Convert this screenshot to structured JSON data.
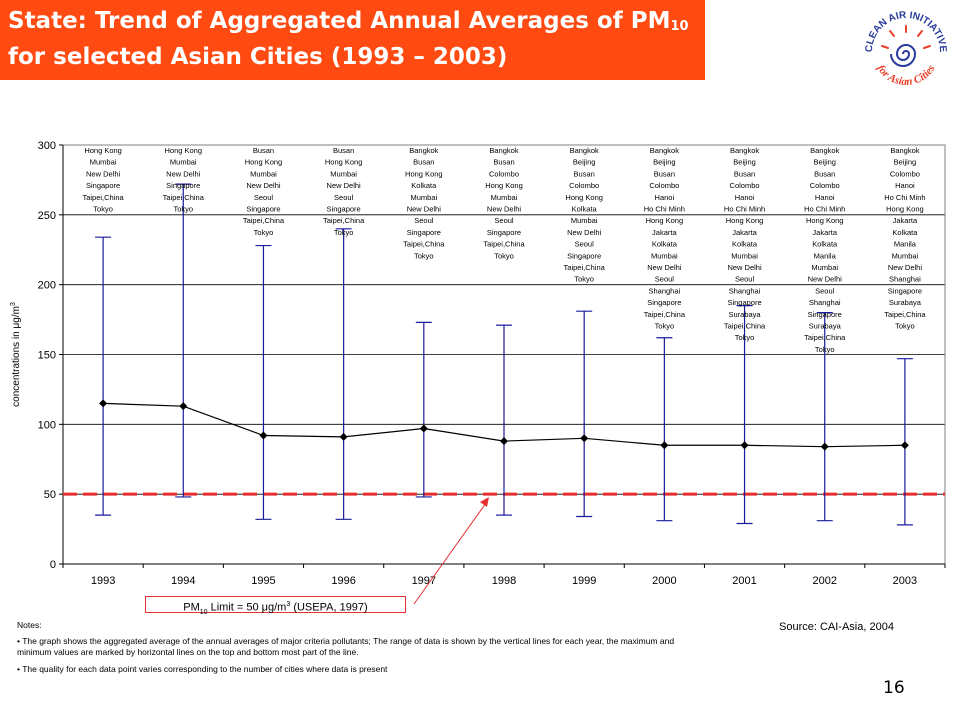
{
  "slide": {
    "title_line1": "State: Trend of Aggregated Annual Averages of PM",
    "title_subscript": "10",
    "title_line2": "for selected Asian Cities (1993 – 2003)",
    "logo_text_top": "CLEAN AIR INITIATIVE",
    "logo_text_bottom": "for Asian Cities",
    "page_number": "16",
    "source": "Source: CAI-Asia, 2004",
    "limit_label_prefix": "PM",
    "limit_label_sub": "10",
    "limit_label_mid": " Limit = 50 μg/m",
    "limit_label_sup": "3",
    "limit_label_suffix": " (USEPA, 1997)",
    "notes_heading": "Notes:",
    "notes": [
      "The graph shows the aggregated average of the annual averages of major criteria pollutants; The range of data is shown by the vertical lines for each year, the maximum and minimum values are marked by horizontal lines on the top and bottom most part of the line.",
      "The quality for each data point varies corresponding to the number of cities where data is present"
    ],
    "colors": {
      "title_bar": "#ff4a12",
      "range_lines": "#1a1a9c",
      "limit_line": "#e53030",
      "average_line": "#000000"
    }
  },
  "chart_data": {
    "type": "line",
    "title": "",
    "xlabel": "",
    "ylabel": "concentrations in μg/m",
    "ylabel_sup": "3",
    "ylim": [
      0,
      300
    ],
    "yticks": [
      0,
      50,
      100,
      150,
      200,
      250,
      300
    ],
    "grid": "horizontal",
    "categories": [
      "1993",
      "1994",
      "1995",
      "1996",
      "1997",
      "1998",
      "1999",
      "2000",
      "2001",
      "2002",
      "2003"
    ],
    "average": [
      115,
      113,
      92,
      91,
      97,
      88,
      90,
      85,
      85,
      84,
      85
    ],
    "max": [
      234,
      272,
      228,
      240,
      173,
      171,
      181,
      162,
      185,
      180,
      147
    ],
    "min": [
      35,
      48,
      32,
      32,
      48,
      35,
      34,
      31,
      29,
      31,
      28
    ],
    "limit": 50,
    "cities": [
      [
        "Hong Kong",
        "Mumbai",
        "New Delhi",
        "Singapore",
        "Taipei,China",
        "Tokyo"
      ],
      [
        "Hong Kong",
        "Mumbai",
        "New Delhi",
        "Singapore",
        "Taipei,China",
        "Tokyo"
      ],
      [
        "Busan",
        "Hong Kong",
        "Mumbai",
        "New Delhi",
        "Seoul",
        "Singapore",
        "Taipei,China",
        "Tokyo"
      ],
      [
        "Busan",
        "Hong Kong",
        "Mumbai",
        "New Delhi",
        "Seoul",
        "Singapore",
        "Taipei,China",
        "Tokyo"
      ],
      [
        "Bangkok",
        "Busan",
        "Hong Kong",
        "Kolkata",
        "Mumbai",
        "New Delhi",
        "Seoul",
        "Singapore",
        "Taipei,China",
        "Tokyo"
      ],
      [
        "Bangkok",
        "Busan",
        "Colombo",
        "Hong Kong",
        "Mumbai",
        "New Delhi",
        "Seoul",
        "Singapore",
        "Taipei,China",
        "Tokyo"
      ],
      [
        "Bangkok",
        "Beijing",
        "Busan",
        "Colombo",
        "Hong Kong",
        "Kolkata",
        "Mumbai",
        "New Delhi",
        "Seoul",
        "Singapore",
        "Taipei,China",
        "Tokyo"
      ],
      [
        "Bangkok",
        "Beijing",
        "Busan",
        "Colombo",
        "Hanoi",
        "Ho Chi Minh",
        "Hong Kong",
        "Jakarta",
        "Kolkata",
        "Mumbai",
        "New Delhi",
        "Seoul",
        "Shanghai",
        "Singapore",
        "Taipei,China",
        "Tokyo"
      ],
      [
        "Bangkok",
        "Beijing",
        "Busan",
        "Colombo",
        "Hanoi",
        "Ho Chi Minh",
        "Hong Kong",
        "Jakarta",
        "Kolkata",
        "Mumbai",
        "New Delhi",
        "Seoul",
        "Shanghai",
        "Singapore",
        "Surabaya",
        "Taipei,China",
        "Tokyo"
      ],
      [
        "Bangkok",
        "Beijing",
        "Busan",
        "Colombo",
        "Hanoi",
        "Ho Chi Minh",
        "Hong Kong",
        "Jakarta",
        "Kolkata",
        "Manila",
        "Mumbai",
        "New Delhi",
        "Seoul",
        "Shanghai",
        "Singapore",
        "Surabaya",
        "Taipei,China",
        "Tokyo"
      ],
      [
        "Bangkok",
        "Beijing",
        "Colombo",
        "Hanoi",
        "Ho Chi Minh",
        "Hong Kong",
        "Jakarta",
        "Kolkata",
        "Manila",
        "Mumbai",
        "New Delhi",
        "Shanghai",
        "Singapore",
        "Surabaya",
        "Taipei,China",
        "Tokyo"
      ]
    ]
  }
}
